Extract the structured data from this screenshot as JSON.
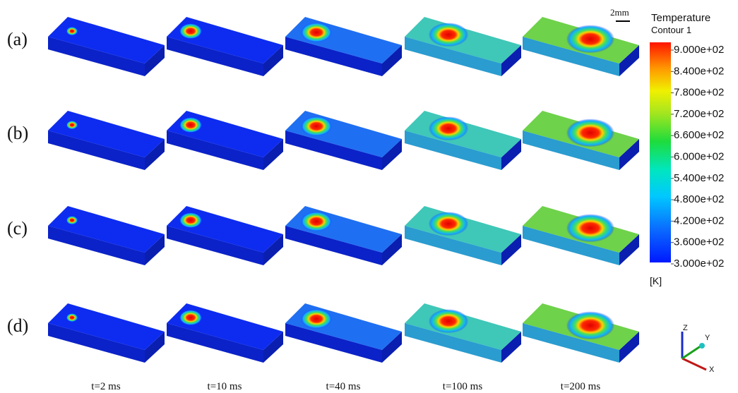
{
  "row_labels": [
    "(a)",
    "(b)",
    "(c)",
    "(d)"
  ],
  "time_labels": [
    "t=2 ms",
    "t=10 ms",
    "t=40 ms",
    "t=100 ms",
    "t=200 ms"
  ],
  "scale_bar": "2mm",
  "legend": {
    "title": "Temperature",
    "subtitle": "Contour 1",
    "unit": "[K]",
    "range": [
      300,
      900
    ],
    "ticks": [
      {
        "value": 900,
        "label": "9.000e+02"
      },
      {
        "value": 840,
        "label": "8.400e+02"
      },
      {
        "value": 780,
        "label": "7.800e+02"
      },
      {
        "value": 720,
        "label": "7.200e+02"
      },
      {
        "value": 660,
        "label": "6.600e+02"
      },
      {
        "value": 600,
        "label": "6.000e+02"
      },
      {
        "value": 540,
        "label": "5.400e+02"
      },
      {
        "value": 480,
        "label": "4.800e+02"
      },
      {
        "value": 420,
        "label": "4.200e+02"
      },
      {
        "value": 360,
        "label": "3.600e+02"
      },
      {
        "value": 300,
        "label": "3.000e+02"
      }
    ]
  },
  "axes": [
    "Z",
    "Y",
    "X"
  ]
}
